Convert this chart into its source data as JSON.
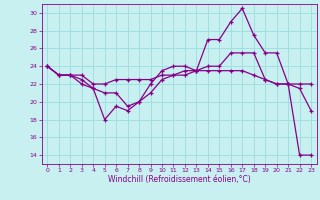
{
  "xlabel": "Windchill (Refroidissement éolien,°C)",
  "background_color": "#c8f0f0",
  "line_color": "#880088",
  "grid_color": "#99dddd",
  "xlim": [
    -0.5,
    23.5
  ],
  "ylim": [
    13.0,
    31.0
  ],
  "yticks": [
    14,
    16,
    18,
    20,
    22,
    24,
    26,
    28,
    30
  ],
  "xticks": [
    0,
    1,
    2,
    3,
    4,
    5,
    6,
    7,
    8,
    9,
    10,
    11,
    12,
    13,
    14,
    15,
    16,
    17,
    18,
    19,
    20,
    21,
    22,
    23
  ],
  "line1_x": [
    0,
    1,
    2,
    3,
    4,
    5,
    6,
    7,
    8,
    9,
    10,
    11,
    12,
    13,
    14,
    15,
    16,
    17,
    18,
    19,
    20,
    21,
    22,
    23
  ],
  "line1_y": [
    24.0,
    23.0,
    23.0,
    23.0,
    22.0,
    22.0,
    22.5,
    22.5,
    22.5,
    22.5,
    23.0,
    23.0,
    23.0,
    23.5,
    23.5,
    23.5,
    23.5,
    23.5,
    23.0,
    22.5,
    22.0,
    22.0,
    22.0,
    22.0
  ],
  "line2_x": [
    0,
    1,
    2,
    3,
    4,
    5,
    6,
    7,
    8,
    9,
    10,
    11,
    12,
    13,
    14,
    15,
    16,
    17,
    18,
    19,
    20,
    21,
    22,
    23
  ],
  "line2_y": [
    24.0,
    23.0,
    23.0,
    22.0,
    21.5,
    18.0,
    19.5,
    19.0,
    20.0,
    22.0,
    23.5,
    24.0,
    24.0,
    23.5,
    27.0,
    27.0,
    29.0,
    30.5,
    27.5,
    25.5,
    25.5,
    22.0,
    21.5,
    19.0
  ],
  "line3_x": [
    0,
    1,
    2,
    3,
    4,
    5,
    6,
    7,
    8,
    9,
    10,
    11,
    12,
    13,
    14,
    15,
    16,
    17,
    18,
    19,
    20,
    21,
    22,
    23
  ],
  "line3_y": [
    24.0,
    23.0,
    23.0,
    22.5,
    21.5,
    21.0,
    21.0,
    19.5,
    20.0,
    21.0,
    22.5,
    23.0,
    23.5,
    23.5,
    24.0,
    24.0,
    25.5,
    25.5,
    25.5,
    22.5,
    22.0,
    22.0,
    14.0,
    14.0
  ]
}
